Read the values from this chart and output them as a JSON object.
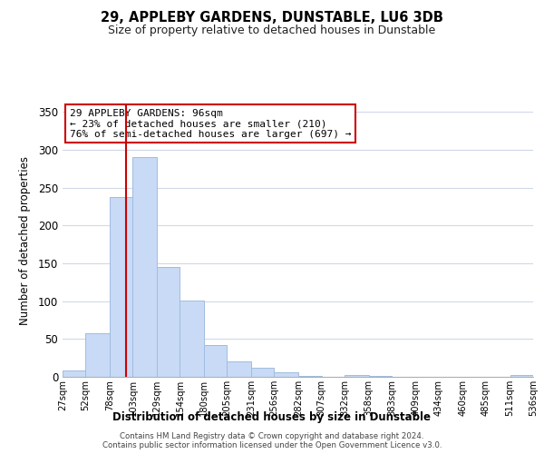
{
  "title": "29, APPLEBY GARDENS, DUNSTABLE, LU6 3DB",
  "subtitle": "Size of property relative to detached houses in Dunstable",
  "xlabel": "Distribution of detached houses by size in Dunstable",
  "ylabel": "Number of detached properties",
  "bar_color": "#c8daf5",
  "bar_edge_color": "#a0bce0",
  "vline_x": 96,
  "vline_color": "#cc0000",
  "bin_edges": [
    27,
    52,
    78,
    103,
    129,
    154,
    180,
    205,
    231,
    256,
    282,
    307,
    332,
    358,
    383,
    409,
    434,
    460,
    485,
    511,
    536
  ],
  "bin_labels": [
    "27sqm",
    "52sqm",
    "78sqm",
    "103sqm",
    "129sqm",
    "154sqm",
    "180sqm",
    "205sqm",
    "231sqm",
    "256sqm",
    "282sqm",
    "307sqm",
    "332sqm",
    "358sqm",
    "383sqm",
    "409sqm",
    "434sqm",
    "460sqm",
    "485sqm",
    "511sqm",
    "536sqm"
  ],
  "bar_heights": [
    8,
    58,
    238,
    290,
    145,
    101,
    42,
    20,
    12,
    6,
    1,
    0,
    3,
    1,
    0,
    0,
    0,
    0,
    0,
    2
  ],
  "ylim": [
    0,
    360
  ],
  "yticks": [
    0,
    50,
    100,
    150,
    200,
    250,
    300,
    350
  ],
  "annotation_line1": "29 APPLEBY GARDENS: 96sqm",
  "annotation_line2": "← 23% of detached houses are smaller (210)",
  "annotation_line3": "76% of semi-detached houses are larger (697) →",
  "annotation_box_color": "#ffffff",
  "annotation_box_edge": "#cc0000",
  "footer_line1": "Contains HM Land Registry data © Crown copyright and database right 2024.",
  "footer_line2": "Contains public sector information licensed under the Open Government Licence v3.0.",
  "background_color": "#ffffff",
  "grid_color": "#d0d8e8"
}
